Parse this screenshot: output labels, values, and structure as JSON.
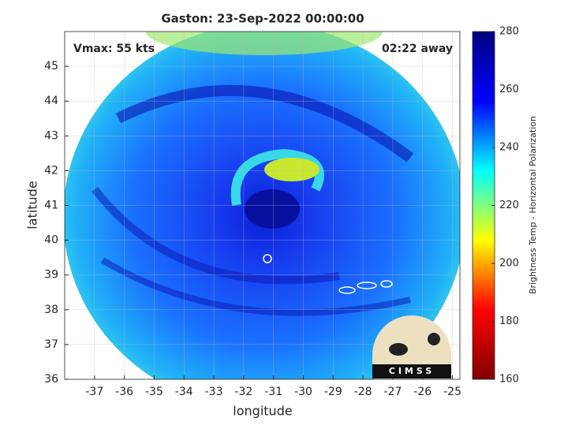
{
  "chart_data": {
    "type": "image",
    "title": "Gaston: 23-Sep-2022 00:00:00",
    "annotations": [
      "Vmax: 55 kts",
      "02:22 away"
    ],
    "xlabel": "longitude",
    "ylabel": "latitude",
    "xlim": [
      -38,
      -24.75
    ],
    "ylim": [
      36,
      46
    ],
    "xticks": [
      -37,
      -36,
      -35,
      -34,
      -33,
      -32,
      -31,
      -30,
      -29,
      -28,
      -27,
      -26,
      -25
    ],
    "yticks": [
      36,
      37,
      38,
      39,
      40,
      41,
      42,
      43,
      44,
      45
    ],
    "grid": true,
    "colormap": "jet",
    "colorbar": {
      "label": "Brightness Temp - Horizontal Polarization",
      "lim": [
        160,
        280
      ],
      "ticks": [
        160,
        180,
        200,
        220,
        240,
        260,
        280
      ]
    },
    "logo_text": "CIMSS"
  }
}
